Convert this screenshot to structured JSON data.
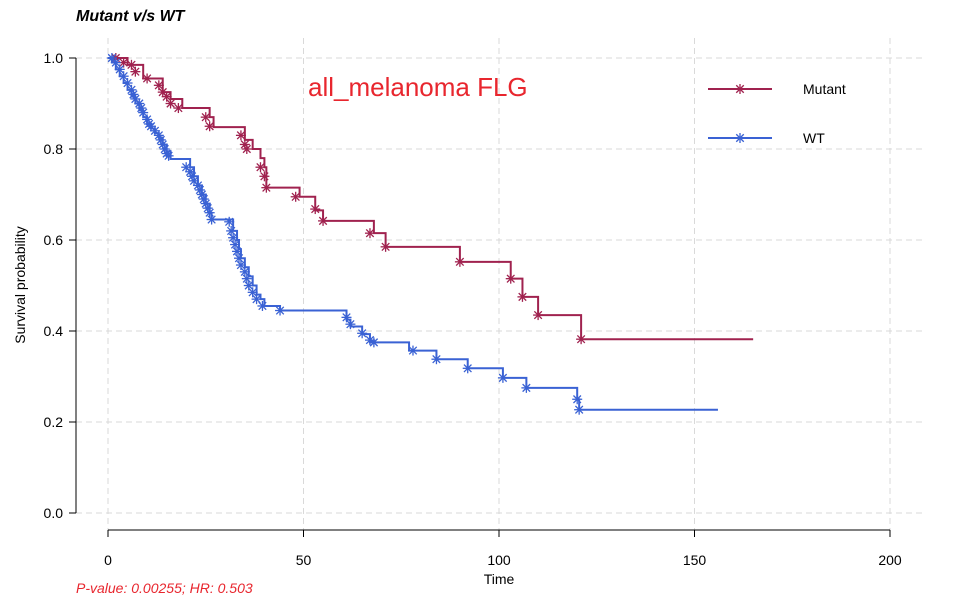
{
  "title": "Mutant v/s WT",
  "footnote": "P-value: 0.00255; HR: 0.503",
  "colors": {
    "mutant": "#a0224f",
    "wt": "#3a62d4",
    "grid": "#d9d9d9",
    "annotation": "#e8262e"
  },
  "chart_data": {
    "type": "line",
    "subtype": "kaplan-meier step",
    "title": "Mutant v/s WT",
    "annotation": "all_melanoma FLG",
    "xlabel": "Time",
    "ylabel": "Survival probability",
    "xlim": [
      0,
      200
    ],
    "ylim": [
      0,
      1
    ],
    "xticks": [
      0,
      50,
      100,
      150,
      200
    ],
    "xtick_labels": [
      "0",
      "50",
      "100",
      "150",
      "200"
    ],
    "yticks": [
      0,
      0.2,
      0.4,
      0.6,
      0.8,
      1.0
    ],
    "ytick_labels": [
      "0.0",
      "0.2",
      "0.4",
      "0.6",
      "0.8",
      "1.0"
    ],
    "grid": true,
    "legend_position": "top-right",
    "series": [
      {
        "name": "Mutant",
        "color": "#a0224f",
        "steps": [
          [
            0,
            1.0
          ],
          [
            5,
            0.985
          ],
          [
            9,
            0.955
          ],
          [
            14,
            0.925
          ],
          [
            16,
            0.91
          ],
          [
            19,
            0.89
          ],
          [
            26,
            0.87
          ],
          [
            27,
            0.848
          ],
          [
            35,
            0.82
          ],
          [
            37,
            0.8
          ],
          [
            39,
            0.78
          ],
          [
            40,
            0.76
          ],
          [
            40.5,
            0.715
          ],
          [
            49,
            0.695
          ],
          [
            53,
            0.665
          ],
          [
            55,
            0.642
          ],
          [
            68,
            0.615
          ],
          [
            71,
            0.585
          ],
          [
            90,
            0.552
          ],
          [
            103,
            0.515
          ],
          [
            106,
            0.475
          ],
          [
            110,
            0.435
          ],
          [
            121,
            0.382
          ],
          [
            165,
            0.382
          ]
        ],
        "censors": [
          [
            2,
            1.0
          ],
          [
            4,
            0.99
          ],
          [
            6,
            0.985
          ],
          [
            7,
            0.97
          ],
          [
            10,
            0.955
          ],
          [
            13,
            0.94
          ],
          [
            14,
            0.925
          ],
          [
            15,
            0.915
          ],
          [
            16,
            0.9
          ],
          [
            18,
            0.89
          ],
          [
            25,
            0.87
          ],
          [
            26,
            0.85
          ],
          [
            34,
            0.83
          ],
          [
            35,
            0.81
          ],
          [
            35.5,
            0.8
          ],
          [
            39,
            0.76
          ],
          [
            40,
            0.74
          ],
          [
            40.5,
            0.715
          ],
          [
            48,
            0.695
          ],
          [
            53,
            0.668
          ],
          [
            55,
            0.642
          ],
          [
            67,
            0.615
          ],
          [
            71,
            0.585
          ],
          [
            90,
            0.552
          ],
          [
            103,
            0.515
          ],
          [
            106,
            0.475
          ],
          [
            110,
            0.435
          ],
          [
            121,
            0.382
          ]
        ]
      },
      {
        "name": "WT",
        "color": "#3a62d4",
        "steps": [
          [
            0,
            1.0
          ],
          [
            1,
            0.99
          ],
          [
            2,
            0.975
          ],
          [
            3,
            0.96
          ],
          [
            4,
            0.945
          ],
          [
            5,
            0.93
          ],
          [
            6,
            0.915
          ],
          [
            7,
            0.9
          ],
          [
            8,
            0.885
          ],
          [
            9,
            0.87
          ],
          [
            10,
            0.855
          ],
          [
            11,
            0.845
          ],
          [
            12,
            0.835
          ],
          [
            13,
            0.825
          ],
          [
            14,
            0.81
          ],
          [
            15,
            0.795
          ],
          [
            16,
            0.778
          ],
          [
            21,
            0.76
          ],
          [
            22,
            0.74
          ],
          [
            23,
            0.72
          ],
          [
            24,
            0.7
          ],
          [
            25,
            0.68
          ],
          [
            26,
            0.66
          ],
          [
            26.5,
            0.645
          ],
          [
            32,
            0.62
          ],
          [
            33,
            0.6
          ],
          [
            33.5,
            0.58
          ],
          [
            34,
            0.56
          ],
          [
            35,
            0.54
          ],
          [
            36,
            0.52
          ],
          [
            37,
            0.5
          ],
          [
            38,
            0.48
          ],
          [
            39,
            0.47
          ],
          [
            40,
            0.455
          ],
          [
            44,
            0.445
          ],
          [
            61,
            0.425
          ],
          [
            62,
            0.41
          ],
          [
            65,
            0.393
          ],
          [
            67,
            0.375
          ],
          [
            77,
            0.357
          ],
          [
            84,
            0.338
          ],
          [
            92,
            0.318
          ],
          [
            101,
            0.297
          ],
          [
            107,
            0.275
          ],
          [
            120,
            0.25
          ],
          [
            120.5,
            0.227
          ],
          [
            156,
            0.227
          ]
        ],
        "censors": [
          [
            1,
            1.0
          ],
          [
            2,
            0.99
          ],
          [
            3,
            0.975
          ],
          [
            4,
            0.96
          ],
          [
            5,
            0.945
          ],
          [
            6,
            0.93
          ],
          [
            6.5,
            0.92
          ],
          [
            7,
            0.91
          ],
          [
            8,
            0.9
          ],
          [
            8.5,
            0.89
          ],
          [
            9,
            0.88
          ],
          [
            10,
            0.865
          ],
          [
            10.5,
            0.855
          ],
          [
            11,
            0.85
          ],
          [
            12,
            0.84
          ],
          [
            13,
            0.83
          ],
          [
            13.5,
            0.82
          ],
          [
            14,
            0.81
          ],
          [
            14.5,
            0.8
          ],
          [
            15,
            0.79
          ],
          [
            15.5,
            0.785
          ],
          [
            20,
            0.76
          ],
          [
            21,
            0.75
          ],
          [
            21.5,
            0.74
          ],
          [
            22,
            0.73
          ],
          [
            23,
            0.72
          ],
          [
            23.5,
            0.71
          ],
          [
            24,
            0.7
          ],
          [
            24.5,
            0.69
          ],
          [
            25,
            0.68
          ],
          [
            25.5,
            0.67
          ],
          [
            26,
            0.66
          ],
          [
            26.5,
            0.645
          ],
          [
            31,
            0.64
          ],
          [
            31.5,
            0.62
          ],
          [
            32,
            0.605
          ],
          [
            32.5,
            0.59
          ],
          [
            33,
            0.575
          ],
          [
            33.5,
            0.56
          ],
          [
            34,
            0.545
          ],
          [
            35,
            0.53
          ],
          [
            35.5,
            0.515
          ],
          [
            36,
            0.5
          ],
          [
            37,
            0.485
          ],
          [
            38,
            0.47
          ],
          [
            39.5,
            0.455
          ],
          [
            44,
            0.445
          ],
          [
            61,
            0.43
          ],
          [
            62,
            0.415
          ],
          [
            65,
            0.395
          ],
          [
            67,
            0.38
          ],
          [
            68,
            0.375
          ],
          [
            78,
            0.357
          ],
          [
            84,
            0.338
          ],
          [
            92,
            0.318
          ],
          [
            101,
            0.297
          ],
          [
            107,
            0.275
          ],
          [
            120,
            0.25
          ],
          [
            120.5,
            0.227
          ]
        ]
      }
    ]
  },
  "legend": [
    {
      "label": "Mutant",
      "color": "#a0224f"
    },
    {
      "label": "WT",
      "color": "#3a62d4"
    }
  ]
}
